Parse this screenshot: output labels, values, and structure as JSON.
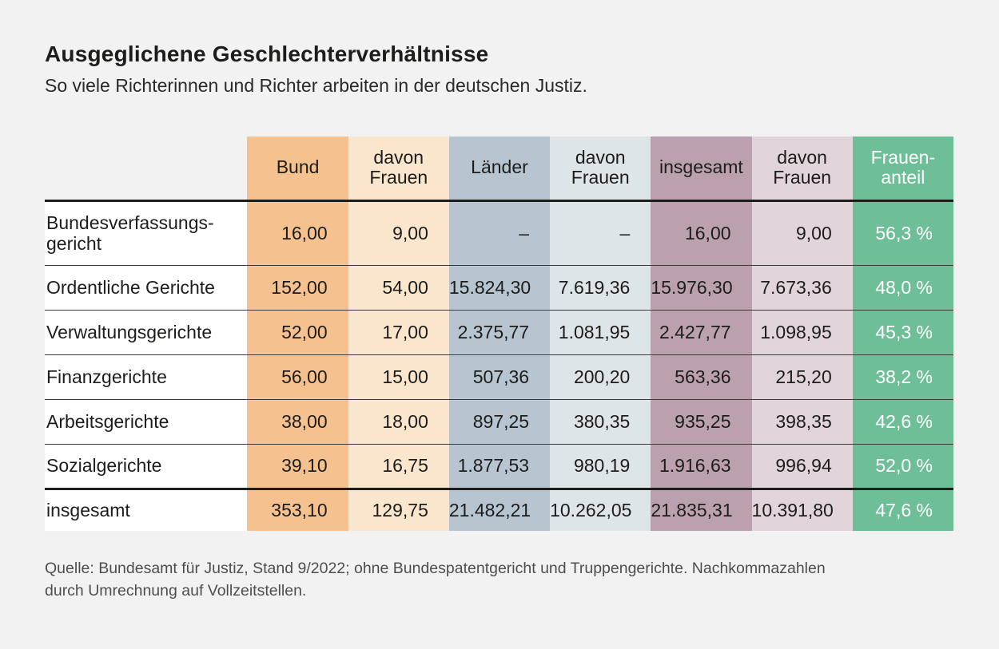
{
  "title": "Ausgeglichene Geschlechterverhältnisse",
  "subtitle": "So viele Richterinnen und Richter arbeiten in der deutschen Justiz.",
  "source": "Quelle: Bundesamt für Justiz, Stand 9/2022; ohne Bundespatentgericht und Truppengerichte. Nachkommazahlen\ndurch Umrechnung auf Vollzeitstellen.",
  "colors": {
    "background": "#f2f2f2",
    "label_cell": "#ffffff",
    "col_bund": "#f4c18f",
    "col_bund_frauen": "#fae5cd",
    "col_laender": "#b6c5d0",
    "col_laender_frauen": "#dde5e9",
    "col_insgesamt": "#bba1ad",
    "col_insgesamt_frauen": "#e2d4db",
    "col_frauenanteil": "#6ebf97",
    "text": "#1d1d1b",
    "source_text": "#4e4e4e",
    "rule_thick": "#1d1d1b",
    "rule_thin": "#3a3a3a"
  },
  "chart_data": {
    "type": "table",
    "title": "Ausgeglichene Geschlechterverhältnisse",
    "subtitle": "So viele Richterinnen und Richter arbeiten in der deutschen Justiz.",
    "columns": [
      "Bund",
      "davon\nFrauen",
      "Länder",
      "davon\nFrauen",
      "insgesamt",
      "davon\nFrauen",
      "Frauen-\nanteil"
    ],
    "rows": [
      {
        "label": "Bundesverfassungs-\ngericht",
        "values": [
          "16,00",
          "9,00",
          "–",
          "–",
          "16,00",
          "9,00",
          "56,3 %"
        ]
      },
      {
        "label": "Ordentliche Gerichte",
        "values": [
          "152,00",
          "54,00",
          "15.824,30",
          "7.619,36",
          "15.976,30",
          "7.673,36",
          "48,0 %"
        ]
      },
      {
        "label": "Verwaltungsgerichte",
        "values": [
          "52,00",
          "17,00",
          "2.375,77",
          "1.081,95",
          "2.427,77",
          "1.098,95",
          "45,3 %"
        ]
      },
      {
        "label": "Finanzgerichte",
        "values": [
          "56,00",
          "15,00",
          "507,36",
          "200,20",
          "563,36",
          "215,20",
          "38,2 %"
        ]
      },
      {
        "label": "Arbeitsgerichte",
        "values": [
          "38,00",
          "18,00",
          "897,25",
          "380,35",
          "935,25",
          "398,35",
          "42,6 %"
        ]
      },
      {
        "label": "Sozialgerichte",
        "values": [
          "39,10",
          "16,75",
          "1.877,53",
          "980,19",
          "1.916,63",
          "996,94",
          "52,0 %"
        ]
      },
      {
        "label": "insgesamt",
        "values": [
          "353,10",
          "129,75",
          "21.482,21",
          "10.262,05",
          "21.835,31",
          "10.391,80",
          "47,6 %"
        ]
      }
    ]
  }
}
